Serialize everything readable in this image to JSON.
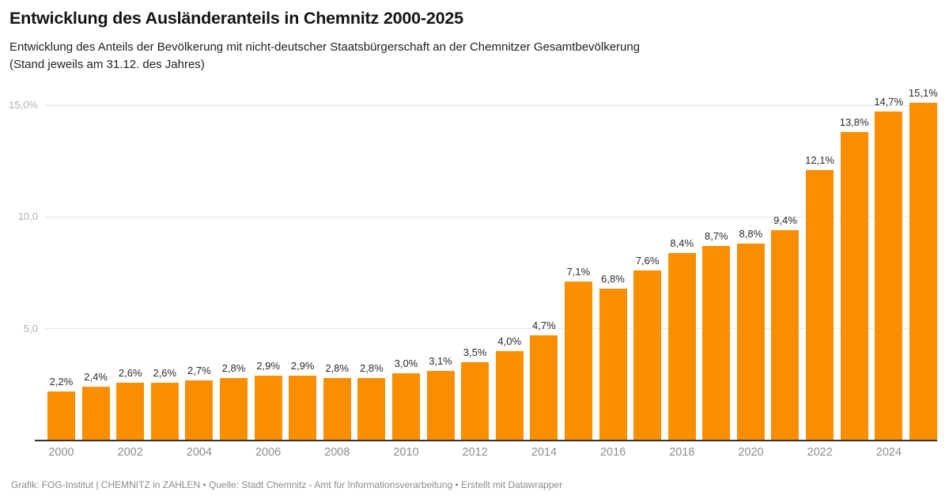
{
  "header": {
    "title": "Entwicklung des Ausländeranteils in Chemnitz 2000-2025",
    "subtitle": "Entwicklung des Anteils der Bevölkerung mit nicht-deutscher Staatsbürgerschaft an der Chemnitzer Gesamtbevölkerung\n(Stand jeweils am 31.12. des Jahres)"
  },
  "chart_data": {
    "type": "bar",
    "title": "Entwicklung des Ausländeranteils in Chemnitz 2000-2025",
    "subtitle": "Entwicklung des Anteils der Bevölkerung mit nicht-deutscher Staatsbürgerschaft an der Chemnitzer Gesamtbevölkerung (Stand jeweils am 31.12. des Jahres)",
    "xlabel": "",
    "ylabel": "",
    "ylim": [
      0,
      15.5
    ],
    "grid": true,
    "legend_position": "none",
    "categories": [
      "2000",
      "2001",
      "2002",
      "2003",
      "2004",
      "2005",
      "2006",
      "2007",
      "2008",
      "2009",
      "2010",
      "2011",
      "2012",
      "2013",
      "2014",
      "2015",
      "2016",
      "2017",
      "2018",
      "2019",
      "2020",
      "2021",
      "2022",
      "2023",
      "2024",
      "2025"
    ],
    "values": [
      2.2,
      2.4,
      2.6,
      2.6,
      2.7,
      2.8,
      2.9,
      2.9,
      2.8,
      2.8,
      3.0,
      3.1,
      3.5,
      4.0,
      4.7,
      7.1,
      6.8,
      7.6,
      8.4,
      8.7,
      8.8,
      9.4,
      12.1,
      13.8,
      14.7,
      15.1
    ],
    "value_labels": [
      "2,2%",
      "2,4%",
      "2,6%",
      "2,6%",
      "2,7%",
      "2,8%",
      "2,9%",
      "2,9%",
      "2,8%",
      "2,8%",
      "3,0%",
      "3,1%",
      "3,5%",
      "4,0%",
      "4,7%",
      "7,1%",
      "6,8%",
      "7,6%",
      "8,4%",
      "8,7%",
      "8,8%",
      "9,4%",
      "12,1%",
      "13,8%",
      "14,7%",
      "15,1%"
    ],
    "y_ticks": [
      {
        "value": 5.0,
        "label": "5,0"
      },
      {
        "value": 10.0,
        "label": "10,0"
      },
      {
        "value": 15.0,
        "label": "15,0%"
      }
    ],
    "x_tick_labels": [
      "2000",
      "2002",
      "2004",
      "2006",
      "2008",
      "2010",
      "2012",
      "2014",
      "2016",
      "2018",
      "2020",
      "2022",
      "2024"
    ],
    "bar_color": "#f98f00"
  },
  "colors": {
    "bar": "#f98f00",
    "gridline": "#e4e4e4",
    "baseline": "#333333",
    "value_label": "#2b2b2b",
    "x_axis_label": "#8e8e8e",
    "y_axis_label": "#b0b0b0",
    "title": "#141414",
    "subtitle": "#222222",
    "footer": "#8a8a8a"
  },
  "footer": {
    "text": "Grafik: FOG-Institut | CHEMNITZ in ZAHLEN • Quelle: Stadt Chemnitz - Amt für Informationsverarbeitung • Erstellt mit Datawrapper"
  }
}
